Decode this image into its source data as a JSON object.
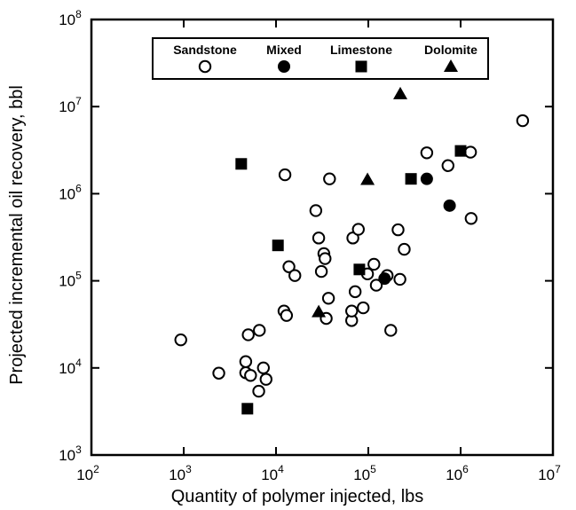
{
  "chart_data": {
    "type": "scatter",
    "title": "",
    "xlabel": "Quantity of polymer injected, lbs",
    "ylabel": "Projected incremental oil recovery, bbl",
    "xscale": "log",
    "yscale": "log",
    "xlim": [
      100,
      10000000
    ],
    "ylim": [
      1000,
      100000000
    ],
    "x_ticks": [
      {
        "base": "10",
        "exp": "2"
      },
      {
        "base": "10",
        "exp": "3"
      },
      {
        "base": "10",
        "exp": "4"
      },
      {
        "base": "10",
        "exp": "5"
      },
      {
        "base": "10",
        "exp": "6"
      },
      {
        "base": "10",
        "exp": "7"
      }
    ],
    "y_ticks": [
      {
        "base": "10",
        "exp": "3"
      },
      {
        "base": "10",
        "exp": "4"
      },
      {
        "base": "10",
        "exp": "5"
      },
      {
        "base": "10",
        "exp": "6"
      },
      {
        "base": "10",
        "exp": "7"
      },
      {
        "base": "10",
        "exp": "8"
      }
    ],
    "grid": false,
    "legend_position": "top",
    "series": [
      {
        "name": "Sandstone",
        "marker": "open-circle",
        "color": "#000000",
        "points": [
          [
            930,
            21000
          ],
          [
            2400,
            8700
          ],
          [
            4700,
            11800
          ],
          [
            4700,
            8800
          ],
          [
            5300,
            8200
          ],
          [
            5000,
            24000
          ],
          [
            6600,
            27000
          ],
          [
            6500,
            5400
          ],
          [
            7300,
            10000
          ],
          [
            7800,
            7400
          ],
          [
            12500,
            1650000
          ],
          [
            12200,
            45000
          ],
          [
            13000,
            40000
          ],
          [
            13800,
            145000
          ],
          [
            16000,
            115000
          ],
          [
            27000,
            640000
          ],
          [
            29000,
            310000
          ],
          [
            31000,
            128000
          ],
          [
            33000,
            205000
          ],
          [
            34000,
            180000
          ],
          [
            35000,
            37000
          ],
          [
            37000,
            63000
          ],
          [
            38000,
            1480000
          ],
          [
            66000,
            35000
          ],
          [
            66000,
            45000
          ],
          [
            68000,
            310000
          ],
          [
            72000,
            75000
          ],
          [
            78000,
            390000
          ],
          [
            88000,
            49000
          ],
          [
            98000,
            120000
          ],
          [
            115000,
            155000
          ],
          [
            122000,
            89000
          ],
          [
            160000,
            115000
          ],
          [
            175000,
            27000
          ],
          [
            210000,
            385000
          ],
          [
            220000,
            104000
          ],
          [
            245000,
            230000
          ],
          [
            430000,
            2950000
          ],
          [
            730000,
            2100000
          ],
          [
            1280000,
            3000000
          ],
          [
            1300000,
            520000
          ],
          [
            4700000,
            6900000
          ]
        ]
      },
      {
        "name": "Mixed",
        "marker": "filled-circle",
        "color": "#000000",
        "points": [
          [
            150000,
            106000
          ],
          [
            430000,
            1480000
          ],
          [
            760000,
            730000
          ]
        ]
      },
      {
        "name": "Limestone",
        "marker": "filled-square",
        "color": "#000000",
        "points": [
          [
            4200,
            2200000
          ],
          [
            4900,
            3400
          ],
          [
            10500,
            255000
          ],
          [
            80000,
            135000
          ],
          [
            290000,
            1480000
          ],
          [
            1000000,
            3100000
          ]
        ]
      },
      {
        "name": "Dolomite",
        "marker": "filled-triangle",
        "color": "#000000",
        "points": [
          [
            29000,
            44000
          ],
          [
            98000,
            1450000
          ],
          [
            222000,
            14000000
          ]
        ]
      }
    ]
  }
}
